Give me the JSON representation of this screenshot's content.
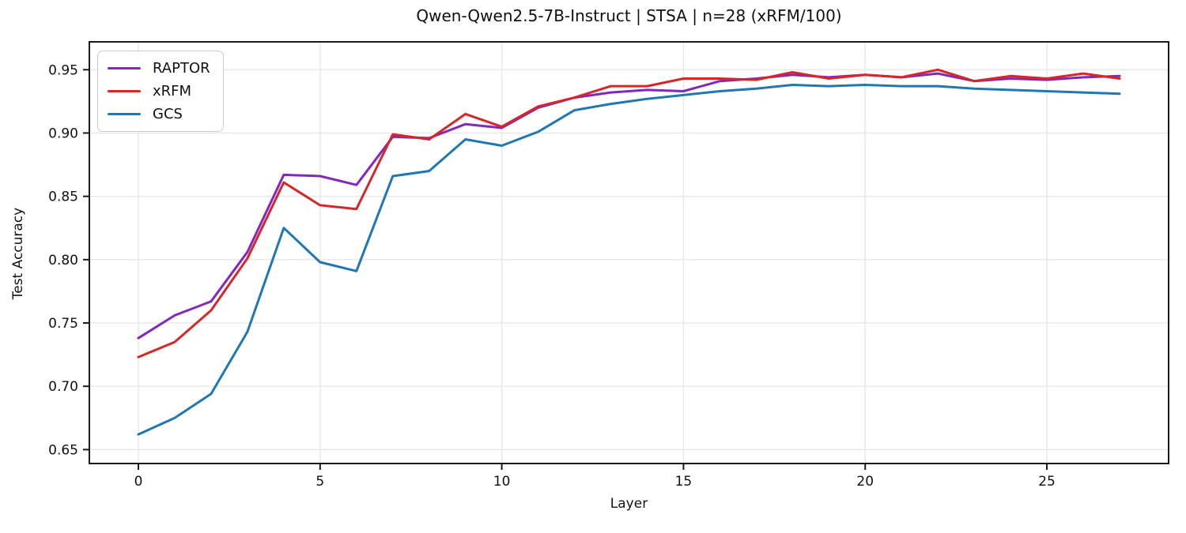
{
  "chart_data": {
    "type": "line",
    "title": "Qwen-Qwen2.5-7B-Instruct | STSA | n=28 (xRFM/100)",
    "xlabel": "Layer",
    "ylabel": "Test Accuracy",
    "x": [
      0,
      1,
      2,
      3,
      4,
      5,
      6,
      7,
      8,
      9,
      10,
      11,
      12,
      13,
      14,
      15,
      16,
      17,
      18,
      19,
      20,
      21,
      22,
      23,
      24,
      25,
      26,
      27
    ],
    "series": [
      {
        "name": "RAPTOR",
        "color": "#8228be",
        "values": [
          0.738,
          0.756,
          0.767,
          0.806,
          0.867,
          0.866,
          0.859,
          0.897,
          0.896,
          0.907,
          0.904,
          0.92,
          0.928,
          0.932,
          0.934,
          0.933,
          0.941,
          0.943,
          0.946,
          0.944,
          0.946,
          0.944,
          0.947,
          0.941,
          0.943,
          0.942,
          0.944,
          0.945
        ]
      },
      {
        "name": "xRFM",
        "color": "#d62728",
        "values": [
          0.723,
          0.735,
          0.76,
          0.801,
          0.861,
          0.843,
          0.84,
          0.899,
          0.895,
          0.915,
          0.905,
          0.921,
          0.928,
          0.937,
          0.937,
          0.943,
          0.943,
          0.942,
          0.948,
          0.943,
          0.946,
          0.944,
          0.95,
          0.941,
          0.945,
          0.943,
          0.947,
          0.943
        ]
      },
      {
        "name": "GCS",
        "color": "#1f77b4",
        "values": [
          0.662,
          0.675,
          0.694,
          0.743,
          0.825,
          0.798,
          0.791,
          0.866,
          0.87,
          0.895,
          0.89,
          0.901,
          0.918,
          0.923,
          0.927,
          0.93,
          0.933,
          0.935,
          0.938,
          0.937,
          0.938,
          0.937,
          0.937,
          0.935,
          0.934,
          0.933,
          0.932,
          0.931
        ]
      }
    ],
    "xlim": [
      -1.35,
      28.35
    ],
    "ylim": [
      0.639,
      0.972
    ],
    "xticks": [
      0,
      5,
      10,
      15,
      20,
      25
    ],
    "xtick_labels": [
      "0",
      "5",
      "10",
      "15",
      "20",
      "25"
    ],
    "yticks": [
      0.65,
      0.7,
      0.75,
      0.8,
      0.85,
      0.9,
      0.95
    ],
    "ytick_labels": [
      "0.65",
      "0.70",
      "0.75",
      "0.80",
      "0.85",
      "0.90",
      "0.95"
    ],
    "grid": true,
    "legend_position": "upper-left"
  },
  "colors": {
    "background": "#ffffff",
    "grid": "#e8e8e8",
    "spine": "#1a1a1a",
    "text": "#111111"
  }
}
